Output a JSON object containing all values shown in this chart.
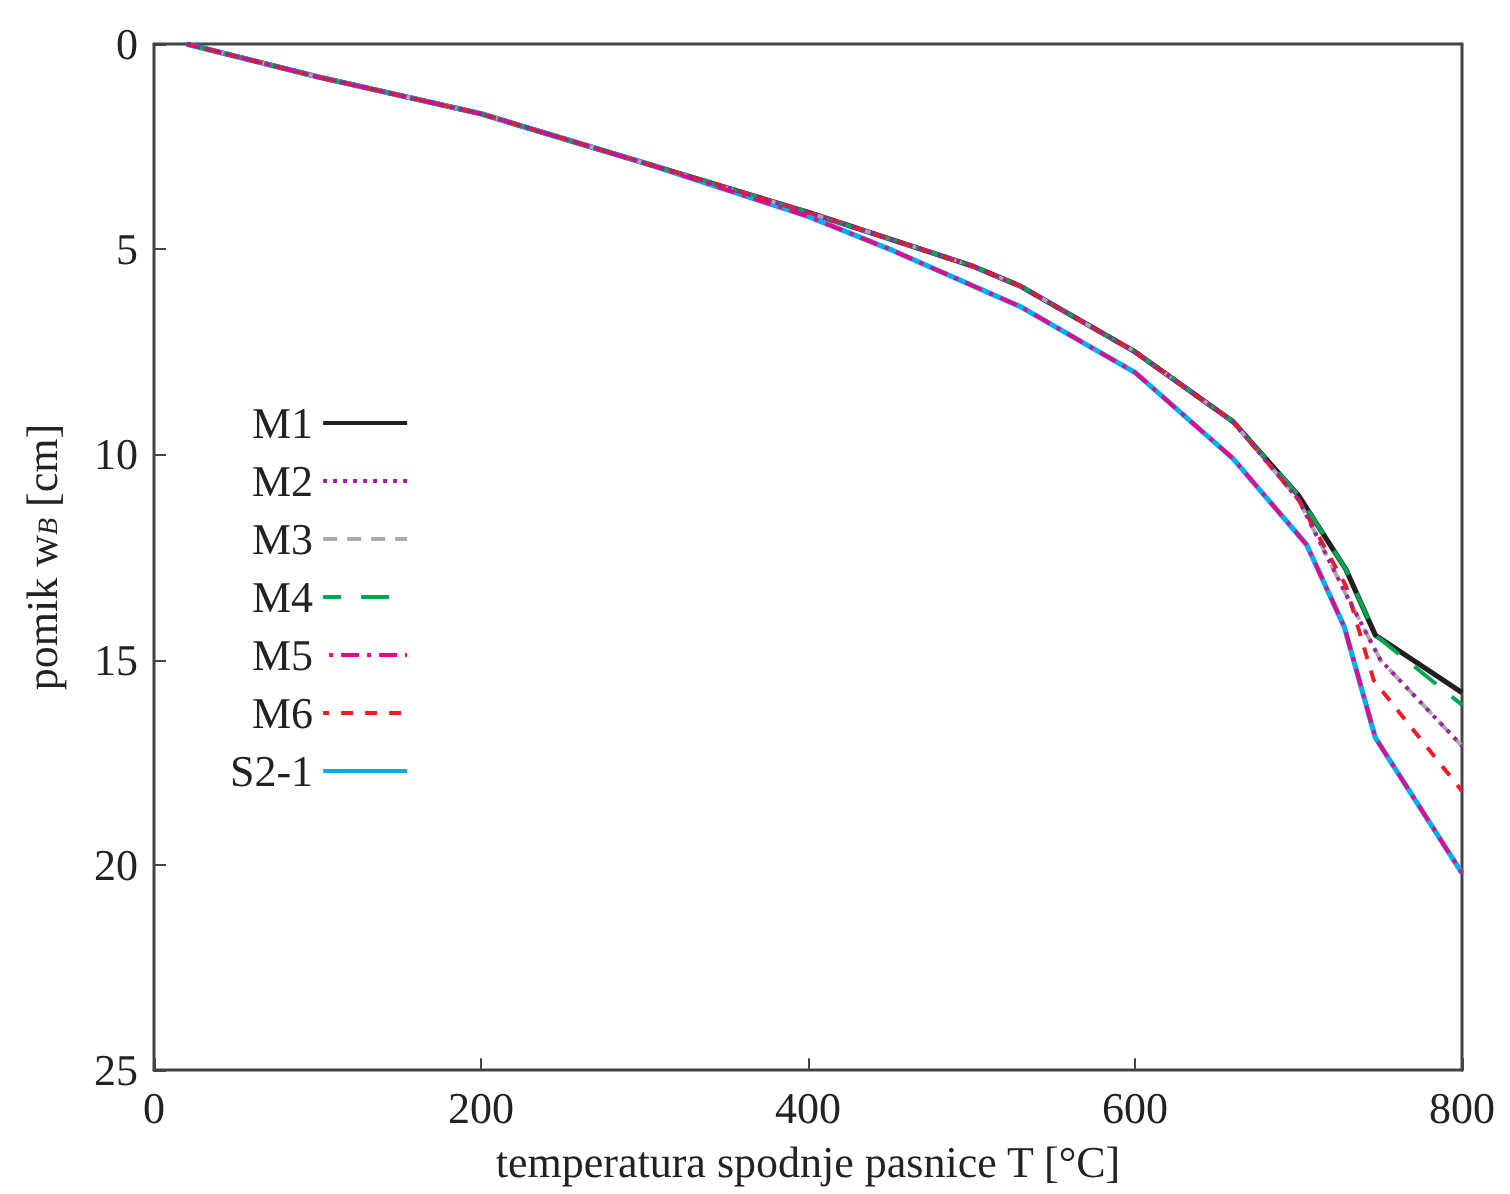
{
  "chart_data": {
    "type": "line",
    "xlabel": "temperatura spodnje pasnice T [°C]",
    "ylabel": "pomik w$_{B}$ [cm]",
    "xlim": [
      0,
      800
    ],
    "xticks": [
      0,
      200,
      400,
      600,
      800
    ],
    "ylim": [
      25,
      0
    ],
    "yticks": [
      0,
      5,
      10,
      15,
      20,
      25
    ],
    "grid": false,
    "legend": "left",
    "marker": "none",
    "series": [
      {
        "name": "M1",
        "color": "#231f20",
        "line_style": "solid",
        "x": [
          20,
          100,
          200,
          300,
          400,
          500,
          530,
          600,
          660,
          700,
          729,
          747,
          800
        ],
        "values": [
          0,
          0.8,
          1.7,
          2.9,
          4.1,
          5.4,
          5.9,
          7.5,
          9.2,
          11.0,
          12.8,
          14.4,
          15.8
        ]
      },
      {
        "name": "M2",
        "color": "#a020a0",
        "line_style": "dotted",
        "x": [
          20,
          100,
          200,
          300,
          400,
          500,
          530,
          600,
          660,
          700,
          729,
          750,
          800
        ],
        "values": [
          0,
          0.8,
          1.7,
          2.9,
          4.1,
          5.4,
          5.9,
          7.5,
          9.2,
          11.1,
          13.4,
          15.0,
          17.1
        ]
      },
      {
        "name": "M3",
        "color": "#aaaaaa",
        "line_style": "dashed",
        "x": [
          20,
          100,
          200,
          300,
          400,
          500,
          530,
          600,
          660,
          700,
          729,
          750,
          800
        ],
        "values": [
          0,
          0.8,
          1.7,
          2.9,
          4.1,
          5.4,
          5.9,
          7.5,
          9.2,
          11.1,
          13.4,
          15.0,
          17.1
        ]
      },
      {
        "name": "M4",
        "color": "#00a651",
        "line_style": "dashed",
        "x": [
          20,
          100,
          200,
          300,
          400,
          500,
          530,
          600,
          660,
          700,
          729,
          747,
          800
        ],
        "values": [
          0,
          0.8,
          1.7,
          2.9,
          4.1,
          5.4,
          5.9,
          7.5,
          9.2,
          11.0,
          12.8,
          14.4,
          16.1
        ]
      },
      {
        "name": "M5",
        "color": "#ec008c",
        "line_style": "dashed",
        "x": [
          20,
          100,
          200,
          300,
          400,
          450,
          530,
          600,
          660,
          705,
          728,
          747,
          800
        ],
        "values": [
          0,
          0.8,
          1.7,
          2.9,
          4.2,
          5.0,
          6.4,
          8.0,
          10.1,
          12.2,
          14.2,
          16.9,
          20.2
        ]
      },
      {
        "name": "M6",
        "color": "#ed1c24",
        "line_style": "dashed",
        "x": [
          20,
          100,
          200,
          300,
          400,
          500,
          530,
          600,
          660,
          700,
          729,
          746,
          800
        ],
        "values": [
          0,
          0.8,
          1.7,
          2.9,
          4.1,
          5.4,
          5.9,
          7.5,
          9.2,
          11.1,
          13.2,
          15.5,
          18.2
        ]
      },
      {
        "name": "S2-1",
        "color": "#00aeef",
        "line_style": "solid",
        "x": [
          20,
          100,
          200,
          300,
          400,
          450,
          530,
          600,
          660,
          705,
          728,
          747,
          800
        ],
        "values": [
          0,
          0.8,
          1.7,
          2.9,
          4.2,
          5.0,
          6.4,
          8.0,
          10.1,
          12.2,
          14.2,
          16.9,
          20.2
        ]
      }
    ]
  }
}
